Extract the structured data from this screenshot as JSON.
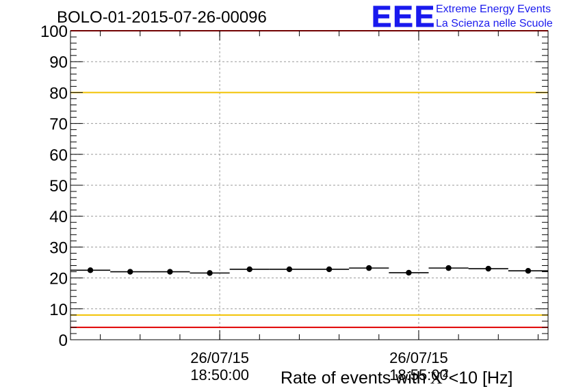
{
  "chart_data": {
    "type": "scatter",
    "title": "BOLO-01-2015-07-26-00096",
    "xlabel_prefix": "Rate of events with",
    "xlabel_chi": "X",
    "xlabel_sup": "2",
    "xlabel_suffix": "<10 [Hz]",
    "ylim": [
      0,
      100
    ],
    "yticks": [
      "0",
      "10",
      "20",
      "30",
      "40",
      "50",
      "60",
      "70",
      "80",
      "90",
      "100"
    ],
    "xlim": [
      "18:46:15",
      "18:58:15"
    ],
    "xticks": [
      {
        "x": "18:50:00",
        "date": "26/07/15",
        "time": "18:50:00"
      },
      {
        "x": "18:55:00",
        "date": "26/07/15",
        "time": "18:55:00"
      }
    ],
    "grid": true,
    "series": [
      {
        "x": [
          "18:46:45",
          "18:47:45",
          "18:48:45",
          "18:49:45",
          "18:50:45",
          "18:51:45",
          "18:52:45",
          "18:53:45",
          "18:54:45",
          "18:55:45",
          "18:56:45",
          "18:57:45"
        ],
        "values": [
          22.5,
          22.0,
          22.0,
          21.6,
          22.8,
          22.8,
          22.8,
          23.2,
          21.7,
          23.2,
          23.0,
          22.3
        ],
        "x_error_seconds": 30
      }
    ],
    "reference_lines": [
      {
        "y": 80,
        "color": "#f2c200"
      },
      {
        "y": 8,
        "color": "#f2c200"
      },
      {
        "y": 4,
        "color": "#e00000"
      },
      {
        "y": 100,
        "color": "#e00000"
      }
    ]
  },
  "logo": {
    "text": "EEE",
    "line1": "Extreme Energy Events",
    "line2": "La Scienza nelle Scuole",
    "color": "#1a1aee"
  }
}
